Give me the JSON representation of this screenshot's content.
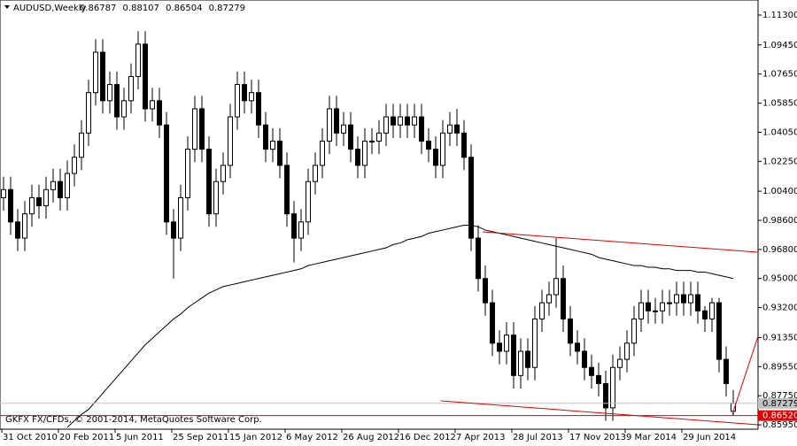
{
  "chart_data": {
    "type": "candlestick",
    "symbol": "AUDUSD,Weekly",
    "footer": "GKFX FX/CFDs, © 2001-2014, MetaQuotes Software Corp.",
    "ylim": [
      0.8568,
      1.1223
    ],
    "yticks": [
      {
        "value": 1.113,
        "label": "1.11300"
      },
      {
        "value": 1.0945,
        "label": "1.09450"
      },
      {
        "value": 1.0765,
        "label": "1.07650"
      },
      {
        "value": 1.0585,
        "label": "1.05850"
      },
      {
        "value": 1.0405,
        "label": "1.04050"
      },
      {
        "value": 1.0225,
        "label": "1.02250"
      },
      {
        "value": 1.004,
        "label": "1.00400"
      },
      {
        "value": 0.986,
        "label": "0.98600"
      },
      {
        "value": 0.968,
        "label": "0.96800"
      },
      {
        "value": 0.95,
        "label": "0.95000"
      },
      {
        "value": 0.932,
        "label": "0.93200"
      },
      {
        "value": 0.9135,
        "label": "0.91350"
      },
      {
        "value": 0.8955,
        "label": "0.89550"
      },
      {
        "value": 0.8775,
        "label": "0.87750"
      },
      {
        "value": 0.8595,
        "label": "0.85950"
      }
    ],
    "x_labels": [
      "31 Oct 2010",
      "20 Feb 2011",
      "5 Jun 2011",
      "25 Sep 2011",
      "15 Jan 2012",
      "6 May 2012",
      "26 Aug 2012",
      "16 Dec 2012",
      "7 Apr 2013",
      "28 Jul 2013",
      "17 Nov 2013",
      "9 Mar 2014",
      "29 Jun 2014"
    ],
    "bid_line": 0.87279,
    "level_line": {
      "value": 0.8652,
      "label": "0.86520"
    },
    "candles": [
      [
        1.0,
        1.013,
        0.992,
        1.005
      ],
      [
        1.005,
        1.013,
        0.977,
        0.985
      ],
      [
        0.985,
        0.993,
        0.967,
        0.975
      ],
      [
        0.975,
        0.998,
        0.967,
        0.99
      ],
      [
        0.99,
        1.008,
        0.982,
        1.0
      ],
      [
        1.0,
        1.008,
        0.987,
        0.995
      ],
      [
        0.995,
        1.013,
        0.987,
        1.005
      ],
      [
        1.005,
        1.018,
        0.997,
        1.01
      ],
      [
        1.01,
        1.018,
        0.992,
        1.0
      ],
      [
        1.0,
        1.023,
        0.992,
        1.015
      ],
      [
        1.015,
        1.033,
        1.007,
        1.025
      ],
      [
        1.025,
        1.048,
        1.017,
        1.04
      ],
      [
        1.04,
        1.073,
        1.032,
        1.065
      ],
      [
        1.065,
        1.098,
        1.057,
        1.09
      ],
      [
        1.09,
        1.098,
        1.052,
        1.06
      ],
      [
        1.06,
        1.078,
        1.052,
        1.07
      ],
      [
        1.07,
        1.078,
        1.042,
        1.05
      ],
      [
        1.05,
        1.068,
        1.042,
        1.06
      ],
      [
        1.06,
        1.083,
        1.052,
        1.075
      ],
      [
        1.075,
        1.103,
        1.067,
        1.095
      ],
      [
        1.095,
        1.103,
        1.047,
        1.055
      ],
      [
        1.055,
        1.068,
        1.047,
        1.06
      ],
      [
        1.06,
        1.068,
        1.037,
        1.045
      ],
      [
        1.045,
        1.053,
        0.977,
        0.985
      ],
      [
        0.985,
        0.993,
        0.95,
        0.975
      ],
      [
        0.975,
        1.008,
        0.967,
        1.0
      ],
      [
        1.0,
        1.038,
        0.992,
        1.03
      ],
      [
        1.03,
        1.063,
        1.022,
        1.055
      ],
      [
        1.055,
        1.063,
        1.022,
        1.03
      ],
      [
        1.03,
        1.038,
        0.982,
        0.99
      ],
      [
        0.99,
        1.018,
        0.982,
        1.01
      ],
      [
        1.01,
        1.028,
        1.002,
        1.02
      ],
      [
        1.02,
        1.058,
        1.012,
        1.05
      ],
      [
        1.05,
        1.078,
        1.042,
        1.07
      ],
      [
        1.07,
        1.078,
        1.052,
        1.06
      ],
      [
        1.06,
        1.073,
        1.052,
        1.065
      ],
      [
        1.065,
        1.073,
        1.037,
        1.045
      ],
      [
        1.045,
        1.053,
        1.022,
        1.03
      ],
      [
        1.03,
        1.043,
        1.022,
        1.035
      ],
      [
        1.035,
        1.043,
        1.012,
        1.02
      ],
      [
        1.02,
        1.028,
        0.982,
        0.99
      ],
      [
        0.99,
        0.998,
        0.96,
        0.975
      ],
      [
        0.975,
        0.993,
        0.967,
        0.985
      ],
      [
        0.985,
        1.018,
        0.977,
        1.01
      ],
      [
        1.01,
        1.028,
        1.002,
        1.02
      ],
      [
        1.02,
        1.043,
        1.012,
        1.035
      ],
      [
        1.035,
        1.063,
        1.027,
        1.055
      ],
      [
        1.055,
        1.063,
        1.032,
        1.04
      ],
      [
        1.04,
        1.053,
        1.032,
        1.045
      ],
      [
        1.045,
        1.053,
        1.022,
        1.03
      ],
      [
        1.03,
        1.038,
        1.012,
        1.02
      ],
      [
        1.02,
        1.043,
        1.012,
        1.035
      ],
      [
        1.035,
        1.043,
        1.027,
        1.035
      ],
      [
        1.035,
        1.048,
        1.027,
        1.04
      ],
      [
        1.04,
        1.058,
        1.032,
        1.05
      ],
      [
        1.05,
        1.058,
        1.037,
        1.045
      ],
      [
        1.045,
        1.058,
        1.037,
        1.05
      ],
      [
        1.05,
        1.058,
        1.037,
        1.045
      ],
      [
        1.045,
        1.058,
        1.037,
        1.05
      ],
      [
        1.05,
        1.058,
        1.027,
        1.035
      ],
      [
        1.035,
        1.043,
        1.022,
        1.03
      ],
      [
        1.03,
        1.038,
        1.012,
        1.02
      ],
      [
        1.02,
        1.048,
        1.012,
        1.04
      ],
      [
        1.04,
        1.053,
        1.032,
        1.045
      ],
      [
        1.045,
        1.055,
        1.032,
        1.04
      ],
      [
        1.04,
        1.048,
        1.017,
        1.025
      ],
      [
        1.025,
        1.033,
        0.967,
        0.975
      ],
      [
        0.975,
        0.983,
        0.942,
        0.95
      ],
      [
        0.95,
        0.958,
        0.927,
        0.935
      ],
      [
        0.935,
        0.943,
        0.902,
        0.91
      ],
      [
        0.91,
        0.918,
        0.897,
        0.905
      ],
      [
        0.905,
        0.923,
        0.897,
        0.915
      ],
      [
        0.915,
        0.923,
        0.882,
        0.89
      ],
      [
        0.89,
        0.913,
        0.882,
        0.905
      ],
      [
        0.905,
        0.913,
        0.887,
        0.895
      ],
      [
        0.895,
        0.933,
        0.887,
        0.925
      ],
      [
        0.925,
        0.943,
        0.917,
        0.935
      ],
      [
        0.935,
        0.948,
        0.927,
        0.94
      ],
      [
        0.94,
        0.975,
        0.932,
        0.95
      ],
      [
        0.95,
        0.958,
        0.917,
        0.925
      ],
      [
        0.925,
        0.933,
        0.902,
        0.91
      ],
      [
        0.91,
        0.918,
        0.897,
        0.905
      ],
      [
        0.905,
        0.913,
        0.887,
        0.895
      ],
      [
        0.895,
        0.903,
        0.882,
        0.89
      ],
      [
        0.89,
        0.898,
        0.877,
        0.885
      ],
      [
        0.885,
        0.893,
        0.862,
        0.87
      ],
      [
        0.87,
        0.903,
        0.862,
        0.895
      ],
      [
        0.895,
        0.908,
        0.887,
        0.9
      ],
      [
        0.9,
        0.918,
        0.892,
        0.91
      ],
      [
        0.91,
        0.933,
        0.902,
        0.925
      ],
      [
        0.925,
        0.943,
        0.917,
        0.935
      ],
      [
        0.935,
        0.943,
        0.922,
        0.93
      ],
      [
        0.93,
        0.938,
        0.922,
        0.93
      ],
      [
        0.93,
        0.943,
        0.922,
        0.935
      ],
      [
        0.935,
        0.943,
        0.927,
        0.935
      ],
      [
        0.935,
        0.948,
        0.927,
        0.94
      ],
      [
        0.94,
        0.948,
        0.927,
        0.935
      ],
      [
        0.935,
        0.948,
        0.927,
        0.94
      ],
      [
        0.94,
        0.948,
        0.922,
        0.93
      ],
      [
        0.93,
        0.933,
        0.917,
        0.925
      ],
      [
        0.925,
        0.938,
        0.917,
        0.935
      ],
      [
        0.935,
        0.938,
        0.892,
        0.9
      ],
      [
        0.9,
        0.908,
        0.877,
        0.885
      ],
      [
        0.86787,
        0.88107,
        0.86504,
        0.87279
      ]
    ],
    "moving_average": [
      null,
      null,
      null,
      null,
      null,
      null,
      null,
      null,
      null,
      0.858,
      0.862,
      0.866,
      0.869,
      0.874,
      0.879,
      0.884,
      0.889,
      0.894,
      0.899,
      0.904,
      0.909,
      0.913,
      0.917,
      0.921,
      0.925,
      0.928,
      0.932,
      0.935,
      0.938,
      0.941,
      0.943,
      0.945,
      0.946,
      0.947,
      0.948,
      0.949,
      0.95,
      0.951,
      0.952,
      0.953,
      0.954,
      0.955,
      0.956,
      0.958,
      0.959,
      0.96,
      0.961,
      0.962,
      0.963,
      0.964,
      0.965,
      0.966,
      0.967,
      0.968,
      0.969,
      0.971,
      0.972,
      0.974,
      0.975,
      0.976,
      0.978,
      0.979,
      0.98,
      0.981,
      0.982,
      0.983,
      0.983,
      0.982,
      0.98,
      0.979,
      0.978,
      0.977,
      0.976,
      0.975,
      0.974,
      0.973,
      0.972,
      0.971,
      0.97,
      0.969,
      0.968,
      0.967,
      0.966,
      0.965,
      0.963,
      0.962,
      0.961,
      0.96,
      0.959,
      0.958,
      0.958,
      0.957,
      0.957,
      0.956,
      0.956,
      0.955,
      0.955,
      0.955,
      0.954,
      0.954,
      0.953,
      0.952,
      0.951,
      0.95
    ]
  }
}
